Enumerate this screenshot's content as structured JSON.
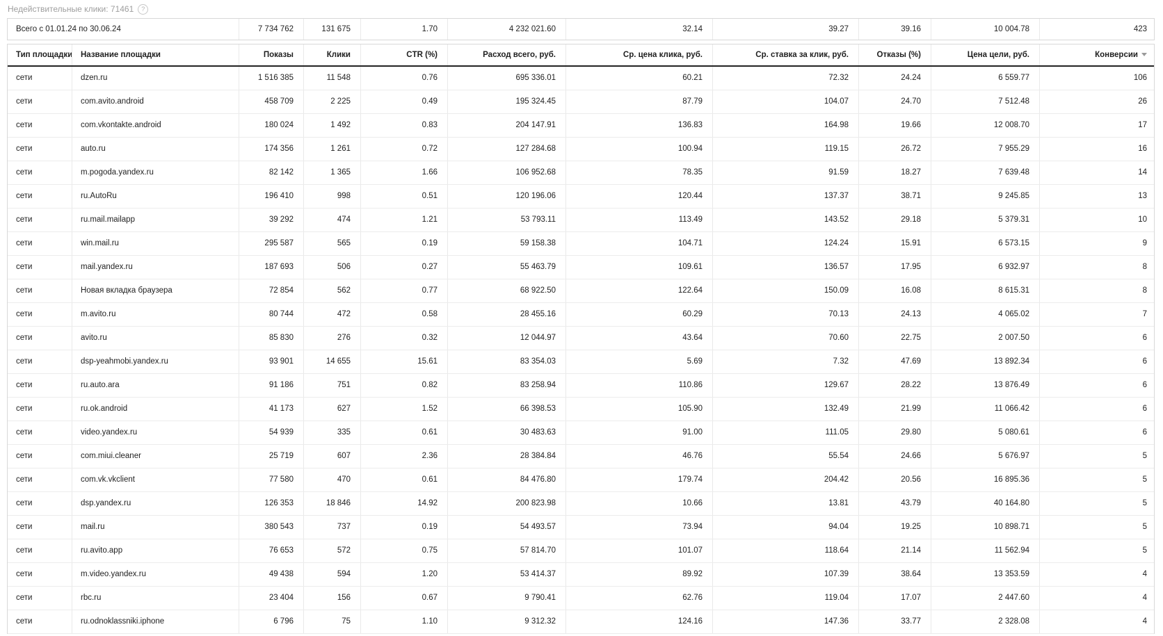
{
  "header_bar": {
    "invalid_clicks_label": "Недействительные клики: 71461",
    "help_icon": "question-mark-circle-icon",
    "help_glyph": "?"
  },
  "totals": {
    "label": "Всего с 01.01.24 по 30.06.24",
    "impressions": "7 734 762",
    "clicks": "131 675",
    "ctr": "1.70",
    "cost_total": "4 232 021.60",
    "avg_cpc": "32.14",
    "avg_bid": "39.27",
    "bounce_rate": "39.16",
    "goal_cost": "10 004.78",
    "conversions": "423"
  },
  "table": {
    "columns": [
      "Тип площадки",
      "Название площадки",
      "Показы",
      "Клики",
      "CTR (%)",
      "Расход всего, руб.",
      "Ср. цена клика, руб.",
      "Ср. ставка за клик, руб.",
      "Отказы (%)",
      "Цена цели, руб.",
      "Конверсии"
    ],
    "column_keys": [
      "platform-type",
      "platform-name",
      "impressions",
      "clicks",
      "ctr",
      "cost-total",
      "avg-cpc",
      "avg-bid",
      "bounce-rate",
      "goal-cost",
      "conversions"
    ],
    "sorted_column_index": 10,
    "sort_direction": "desc",
    "rows": [
      [
        "сети",
        "dzen.ru",
        "1 516 385",
        "11 548",
        "0.76",
        "695 336.01",
        "60.21",
        "72.32",
        "24.24",
        "6 559.77",
        "106"
      ],
      [
        "сети",
        "com.avito.android",
        "458 709",
        "2 225",
        "0.49",
        "195 324.45",
        "87.79",
        "104.07",
        "24.70",
        "7 512.48",
        "26"
      ],
      [
        "сети",
        "com.vkontakte.android",
        "180 024",
        "1 492",
        "0.83",
        "204 147.91",
        "136.83",
        "164.98",
        "19.66",
        "12 008.70",
        "17"
      ],
      [
        "сети",
        "auto.ru",
        "174 356",
        "1 261",
        "0.72",
        "127 284.68",
        "100.94",
        "119.15",
        "26.72",
        "7 955.29",
        "16"
      ],
      [
        "сети",
        "m.pogoda.yandex.ru",
        "82 142",
        "1 365",
        "1.66",
        "106 952.68",
        "78.35",
        "91.59",
        "18.27",
        "7 639.48",
        "14"
      ],
      [
        "сети",
        "ru.AutoRu",
        "196 410",
        "998",
        "0.51",
        "120 196.06",
        "120.44",
        "137.37",
        "38.71",
        "9 245.85",
        "13"
      ],
      [
        "сети",
        "ru.mail.mailapp",
        "39 292",
        "474",
        "1.21",
        "53 793.11",
        "113.49",
        "143.52",
        "29.18",
        "5 379.31",
        "10"
      ],
      [
        "сети",
        "win.mail.ru",
        "295 587",
        "565",
        "0.19",
        "59 158.38",
        "104.71",
        "124.24",
        "15.91",
        "6 573.15",
        "9"
      ],
      [
        "сети",
        "mail.yandex.ru",
        "187 693",
        "506",
        "0.27",
        "55 463.79",
        "109.61",
        "136.57",
        "17.95",
        "6 932.97",
        "8"
      ],
      [
        "сети",
        "Новая вкладка браузера",
        "72 854",
        "562",
        "0.77",
        "68 922.50",
        "122.64",
        "150.09",
        "16.08",
        "8 615.31",
        "8"
      ],
      [
        "сети",
        "m.avito.ru",
        "80 744",
        "472",
        "0.58",
        "28 455.16",
        "60.29",
        "70.13",
        "24.13",
        "4 065.02",
        "7"
      ],
      [
        "сети",
        "avito.ru",
        "85 830",
        "276",
        "0.32",
        "12 044.97",
        "43.64",
        "70.60",
        "22.75",
        "2 007.50",
        "6"
      ],
      [
        "сети",
        "dsp-yeahmobi.yandex.ru",
        "93 901",
        "14 655",
        "15.61",
        "83 354.03",
        "5.69",
        "7.32",
        "47.69",
        "13 892.34",
        "6"
      ],
      [
        "сети",
        "ru.auto.ara",
        "91 186",
        "751",
        "0.82",
        "83 258.94",
        "110.86",
        "129.67",
        "28.22",
        "13 876.49",
        "6"
      ],
      [
        "сети",
        "ru.ok.android",
        "41 173",
        "627",
        "1.52",
        "66 398.53",
        "105.90",
        "132.49",
        "21.99",
        "11 066.42",
        "6"
      ],
      [
        "сети",
        "video.yandex.ru",
        "54 939",
        "335",
        "0.61",
        "30 483.63",
        "91.00",
        "111.05",
        "29.80",
        "5 080.61",
        "6"
      ],
      [
        "сети",
        "com.miui.cleaner",
        "25 719",
        "607",
        "2.36",
        "28 384.84",
        "46.76",
        "55.54",
        "24.66",
        "5 676.97",
        "5"
      ],
      [
        "сети",
        "com.vk.vkclient",
        "77 580",
        "470",
        "0.61",
        "84 476.80",
        "179.74",
        "204.42",
        "20.56",
        "16 895.36",
        "5"
      ],
      [
        "сети",
        "dsp.yandex.ru",
        "126 353",
        "18 846",
        "14.92",
        "200 823.98",
        "10.66",
        "13.81",
        "43.79",
        "40 164.80",
        "5"
      ],
      [
        "сети",
        "mail.ru",
        "380 543",
        "737",
        "0.19",
        "54 493.57",
        "73.94",
        "94.04",
        "19.25",
        "10 898.71",
        "5"
      ],
      [
        "сети",
        "ru.avito.app",
        "76 653",
        "572",
        "0.75",
        "57 814.70",
        "101.07",
        "118.64",
        "21.14",
        "11 562.94",
        "5"
      ],
      [
        "сети",
        "m.video.yandex.ru",
        "49 438",
        "594",
        "1.20",
        "53 414.37",
        "89.92",
        "107.39",
        "38.64",
        "13 353.59",
        "4"
      ],
      [
        "сети",
        "rbc.ru",
        "23 404",
        "156",
        "0.67",
        "9 790.41",
        "62.76",
        "119.04",
        "17.07",
        "2 447.60",
        "4"
      ],
      [
        "сети",
        "ru.odnoklassniki.iphone",
        "6 796",
        "75",
        "1.10",
        "9 312.32",
        "124.16",
        "147.36",
        "33.77",
        "2 328.08",
        "4"
      ]
    ]
  },
  "colors": {
    "header_underline": "#222222",
    "grid_border": "#d8d8d8",
    "row_border": "#ececec",
    "label_gray": "#9e9e9e"
  }
}
